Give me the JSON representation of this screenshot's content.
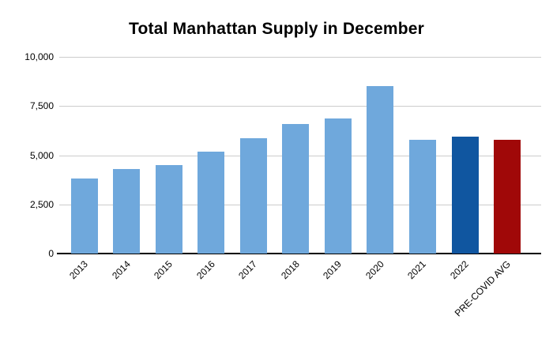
{
  "chart_data": {
    "type": "bar",
    "title": "Total Manhattan Supply in December",
    "xlabel": "",
    "ylabel": "",
    "categories": [
      "2013",
      "2014",
      "2015",
      "2016",
      "2017",
      "2018",
      "2019",
      "2020",
      "2021",
      "2022",
      "PRE-COVID AVG"
    ],
    "values": [
      3800,
      4300,
      4500,
      5200,
      5850,
      6600,
      6850,
      8500,
      5800,
      5950,
      5800
    ],
    "bar_colors": [
      "#6fa8dc",
      "#6fa8dc",
      "#6fa8dc",
      "#6fa8dc",
      "#6fa8dc",
      "#6fa8dc",
      "#6fa8dc",
      "#6fa8dc",
      "#6fa8dc",
      "#1056a0",
      "#a00808"
    ],
    "ylim": [
      0,
      10000
    ],
    "yticks": [
      {
        "value": 0,
        "label": "0"
      },
      {
        "value": 2500,
        "label": "2,500"
      },
      {
        "value": 5000,
        "label": "5,000"
      },
      {
        "value": 7500,
        "label": "7,500"
      },
      {
        "value": 10000,
        "label": "10,000"
      }
    ],
    "grid": true,
    "legend_position": "none",
    "colors": {
      "default_bar": "#6fa8dc",
      "highlight_2022": "#1056a0",
      "highlight_precovid": "#a00808",
      "gridline": "#cccccc",
      "axis": "#000000",
      "title_text": "#000000",
      "tick_text": "#000000",
      "background": "#ffffff"
    }
  }
}
